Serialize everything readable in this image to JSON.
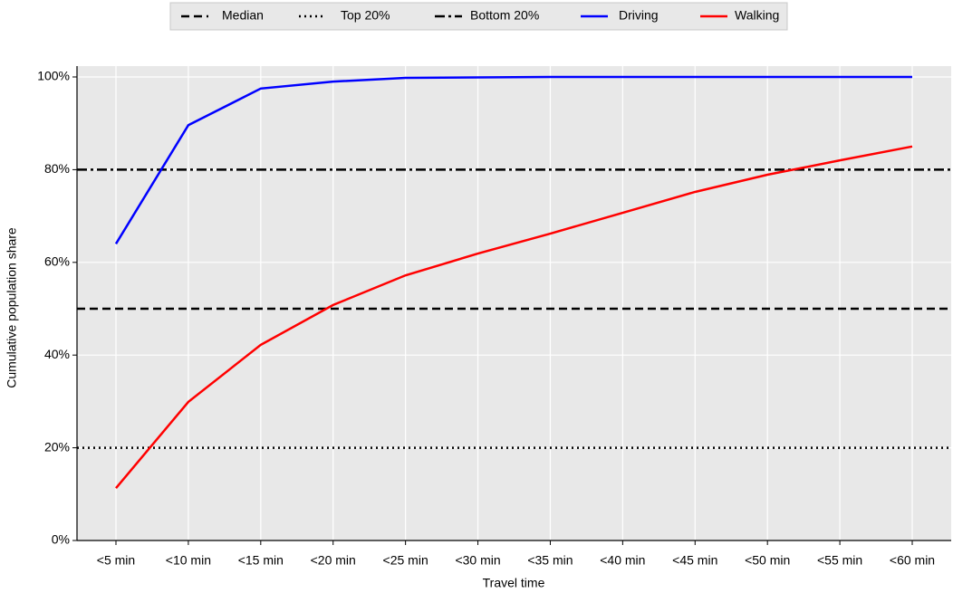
{
  "chart_data": {
    "type": "line",
    "x_label": "Travel time",
    "y_label": "Cumulative population share",
    "categories": [
      "<5 min",
      "<10 min",
      "<15 min",
      "<20 min",
      "<25 min",
      "<30 min",
      "<35 min",
      "<40 min",
      "<45 min",
      "<50 min",
      "<55 min",
      "<60 min"
    ],
    "series": [
      {
        "name": "Driving",
        "color": "#0000ff",
        "values": [
          64,
          89.6,
          97.5,
          99,
          99.8,
          99.9,
          100,
          100,
          100,
          100,
          100,
          100
        ]
      },
      {
        "name": "Walking",
        "color": "#ff0000",
        "values": [
          11.3,
          29.9,
          42.2,
          50.8,
          57.2,
          61.9,
          66.2,
          70.7,
          75.2,
          78.9,
          82,
          85
        ]
      }
    ],
    "reference_lines": [
      {
        "name": "Median",
        "value": 50,
        "style": "dashed",
        "color": "#000000"
      },
      {
        "name": "Top 20%",
        "value": 20,
        "style": "dotted",
        "color": "#000000"
      },
      {
        "name": "Bottom 20%",
        "value": 80,
        "style": "dashdot",
        "color": "#000000"
      }
    ],
    "ylim": [
      0,
      100
    ],
    "yticks": [
      {
        "value": 0,
        "label": "0%"
      },
      {
        "value": 20,
        "label": "20%"
      },
      {
        "value": 40,
        "label": "40%"
      },
      {
        "value": 60,
        "label": "60%"
      },
      {
        "value": 80,
        "label": "80%"
      },
      {
        "value": 100,
        "label": "100%"
      }
    ],
    "grid": true,
    "legend": "top"
  }
}
